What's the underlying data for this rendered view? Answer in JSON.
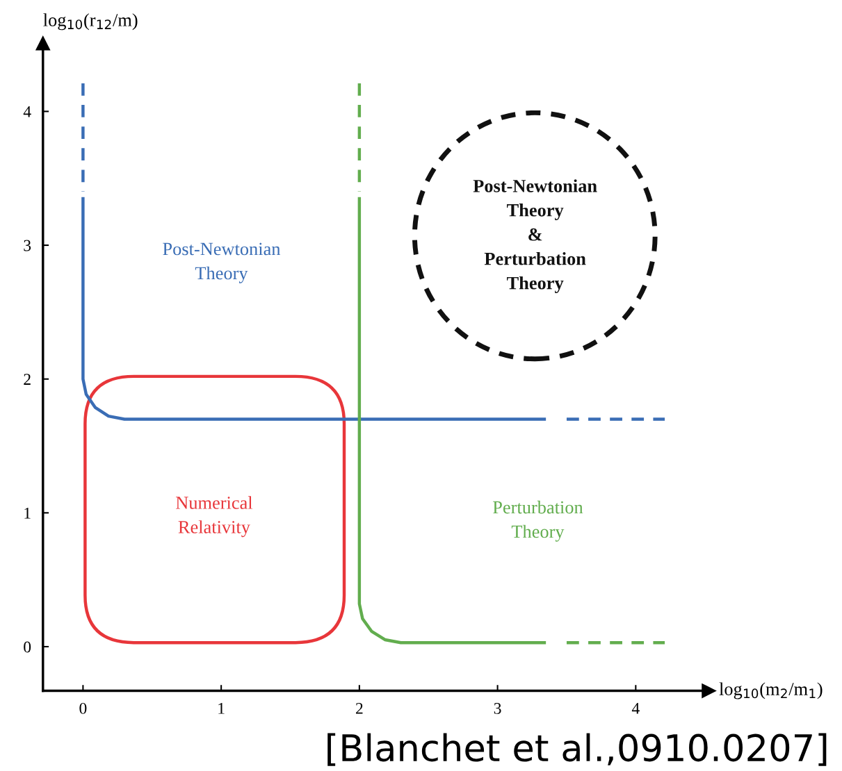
{
  "chart_data": {
    "type": "line",
    "xlabel": "log$_{10}$(m$_{2}$/m$_{1}$)",
    "ylabel": "log$_{10}$(r$_{12}$/m)",
    "xlim": [
      -0.29,
      4.53
    ],
    "ylim": [
      -0.33,
      4.51
    ],
    "xticks": [
      0,
      1,
      2,
      3,
      4
    ],
    "yticks": [
      0,
      1,
      2,
      3,
      4
    ],
    "grid": false,
    "legend": false,
    "series": [
      {
        "color": "#3a6db5",
        "line_style": "solid",
        "x": [
          0,
          0,
          0.023,
          0.088,
          0.185,
          0.3,
          3.35
        ],
        "values": [
          3.36,
          2.0,
          1.885,
          1.788,
          1.723,
          1.7,
          1.7
        ]
      },
      {
        "color": "#62ad4e",
        "line_style": "solid",
        "x": [
          2,
          2,
          2.023,
          2.088,
          2.185,
          2.3,
          3.35
        ],
        "values": [
          3.36,
          0.32,
          0.209,
          0.115,
          0.052,
          0.03,
          0.03
        ]
      },
      {
        "color": "#3a6db5",
        "line_style": "dashed",
        "x": [
          0,
          0
        ],
        "values": [
          4.21,
          3.4
        ]
      },
      {
        "color": "#3a6db5",
        "line_style": "dashed",
        "x": [
          3.5,
          4.21
        ],
        "values": [
          1.7,
          1.7
        ]
      },
      {
        "color": "#62ad4e",
        "line_style": "dashed",
        "x": [
          2,
          2
        ],
        "values": [
          4.21,
          3.4
        ]
      },
      {
        "color": "#62ad4e",
        "line_style": "dashed",
        "x": [
          3.5,
          4.21
        ],
        "values": [
          0.03,
          0.03
        ]
      }
    ],
    "annotations": [
      "Post-Newtonian\nTheory",
      "Numerical\nRelativity",
      "Perturbation\nTheory",
      "Post-Newtonian\nTheory\n&\nPerturbation\nTheory",
      "[Blanchet et al.,0910.0207]"
    ]
  }
}
